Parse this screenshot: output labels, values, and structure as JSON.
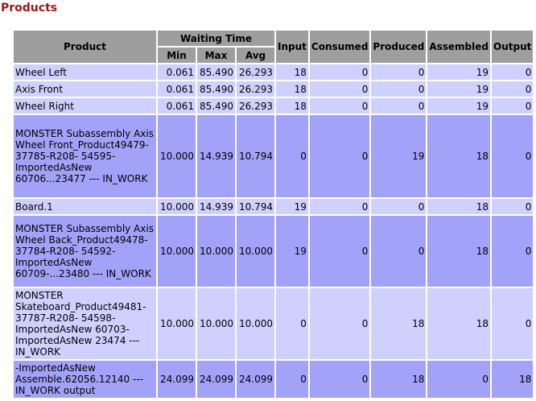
{
  "page": {
    "title": "Products"
  },
  "table": {
    "headers": {
      "product": "Product",
      "waiting_time": "Waiting Time",
      "min": "Min",
      "max": "Max",
      "avg": "Avg",
      "input": "Input",
      "consumed": "Consumed",
      "produced": "Produced",
      "assembled": "Assembled",
      "output": "Output"
    },
    "rows": [
      {
        "product": "Wheel Left",
        "min": "0.061",
        "max": "85.490",
        "avg": "26.293",
        "input": "18",
        "consumed": "0",
        "produced": "0",
        "assembled": "19",
        "output": "0"
      },
      {
        "product": "Axis Front",
        "min": "0.061",
        "max": "85.490",
        "avg": "26.293",
        "input": "18",
        "consumed": "0",
        "produced": "0",
        "assembled": "19",
        "output": "0"
      },
      {
        "product": "Wheel Right",
        "min": "0.061",
        "max": "85.490",
        "avg": "26.293",
        "input": "18",
        "consumed": "0",
        "produced": "0",
        "assembled": "19",
        "output": "0"
      },
      {
        "product": "MONSTER Subassembly Axis Wheel Front_Product49479-37785-R208- 54595-ImportedAsNew 60706...23477 --- IN_WORK",
        "min": "10.000",
        "max": "14.939",
        "avg": "10.794",
        "input": "0",
        "consumed": "0",
        "produced": "19",
        "assembled": "18",
        "output": "0"
      },
      {
        "product": "Board.1",
        "min": "10.000",
        "max": "14.939",
        "avg": "10.794",
        "input": "19",
        "consumed": "0",
        "produced": "0",
        "assembled": "18",
        "output": "0"
      },
      {
        "product": "MONSTER Subassembly Axis Wheel Back_Product49478-37784-R208- 54592-ImportedAsNew 60709-...23480 --- IN_WORK",
        "min": "10.000",
        "max": "10.000",
        "avg": "10.000",
        "input": "19",
        "consumed": "0",
        "produced": "0",
        "assembled": "18",
        "output": "0"
      },
      {
        "product": "MONSTER Skateboard_Product49481-37787-R208- 54598-ImportedAsNew 60703-ImportedAsNew 23474 --- IN_WORK",
        "min": "10.000",
        "max": "10.000",
        "avg": "10.000",
        "input": "0",
        "consumed": "0",
        "produced": "18",
        "assembled": "18",
        "output": "0"
      },
      {
        "product": "-ImportedAsNew Assemble.62056.12140 --- IN_WORK output",
        "min": "24.099",
        "max": "24.099",
        "avg": "24.099",
        "input": "0",
        "consumed": "0",
        "produced": "18",
        "assembled": "0",
        "output": "18"
      }
    ]
  }
}
